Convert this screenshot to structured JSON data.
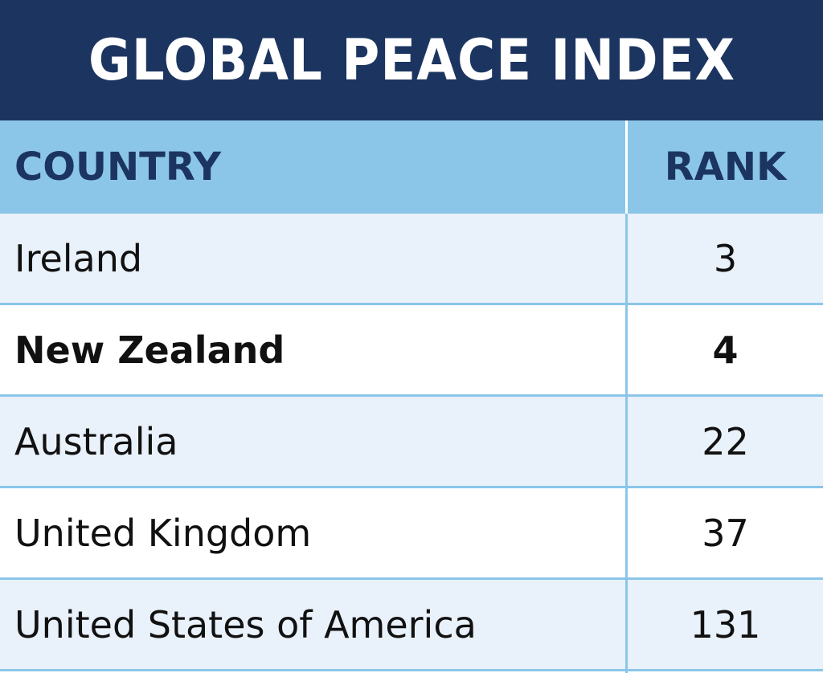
{
  "title": "GLOBAL PEACE INDEX",
  "colors": {
    "title_bg": "#1c3560",
    "header_bg": "#8bc6e9",
    "header_text": "#1c3560",
    "row_shade": "#e9f1fa",
    "row_white": "#ffffff",
    "grid_line": "#8bc6e9"
  },
  "table": {
    "columns": [
      "COUNTRY",
      "RANK"
    ],
    "rows": [
      {
        "country": "Ireland",
        "rank": "3",
        "highlighted": false
      },
      {
        "country": "New Zealand",
        "rank": "4",
        "highlighted": true
      },
      {
        "country": "Australia",
        "rank": "22",
        "highlighted": false
      },
      {
        "country": "United Kingdom",
        "rank": "37",
        "highlighted": false
      },
      {
        "country": "United States of America",
        "rank": "131",
        "highlighted": false
      }
    ]
  }
}
